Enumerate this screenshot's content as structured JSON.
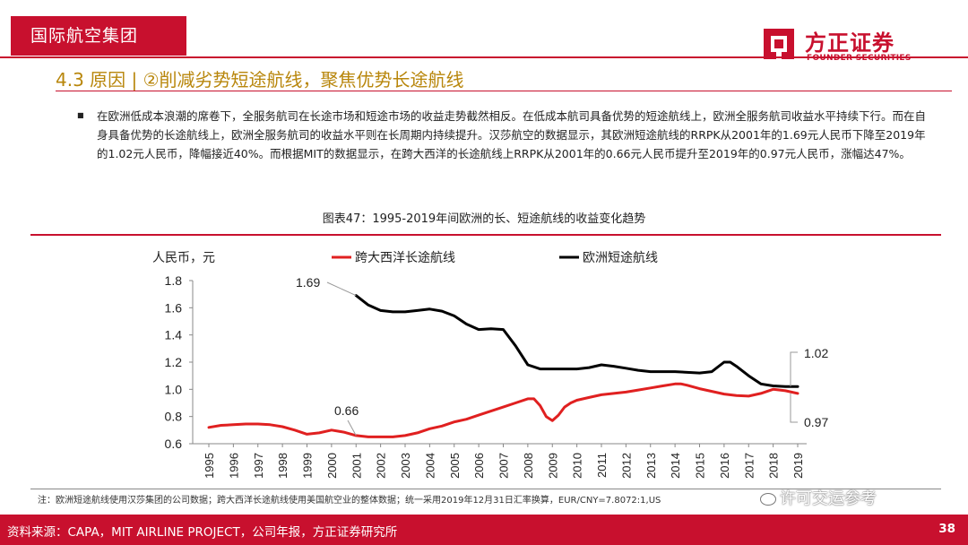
{
  "header": {
    "section": "国际航空集团",
    "logo_cn": "方正证券",
    "logo_en": "FOUNDER SECURITIES"
  },
  "slide": {
    "title": "4.3 原因 | ②削减劣势短途航线，聚焦优势长途航线",
    "bullet": "■",
    "body": "在欧洲低成本浪潮的席卷下，全服务航司在长途市场和短途市场的收益走势截然相反。在低成本航司具备优势的短途航线上，欧洲全服务航司收益水平持续下行。而在自身具备优势的长途航线上，欧洲全服务航司的收益水平则在长周期内持续提升。汉莎航空的数据显示，其欧洲短途航线的RRPK从2001年的1.69元人民币下降至2019年的1.02元人民币，降幅接近40%。而根据MIT的数据显示，在跨大西洋的长途航线上RRPK从2001年的0.66元人民币提升至2019年的0.97元人民币，涨幅达47%。",
    "chart_caption": "图表47：1995-2019年间欧洲的长、短途航线的收益变化趋势",
    "footnote": "注：欧洲短途航线使用汉莎集团的公司数据；跨大西洋长途航线使用美国航空业的整体数据；统一采用2019年12月31日汇率换算，EUR/CNY=7.8072:1,US",
    "watermark": "许可交运参考",
    "source": "资料来源：CAPA，MIT AIRLINE PROJECT，公司年报，方正证券研究所",
    "page": "38"
  },
  "colors": {
    "brand_red": "#c8102e",
    "title_gold": "#b8860b",
    "series_transatlantic": "#e02020",
    "series_europe_short": "#000000"
  },
  "chart_data": {
    "type": "line",
    "ylabel": "人民币，元",
    "ylim": [
      0.6,
      1.8
    ],
    "yticks": [
      "0.6",
      "0.8",
      "1.0",
      "1.2",
      "1.4",
      "1.6",
      "1.8"
    ],
    "x": [
      "1995",
      "1996",
      "1997",
      "1998",
      "1999",
      "2000",
      "2001",
      "2002",
      "2003",
      "2004",
      "2005",
      "2006",
      "2007",
      "2008",
      "2009",
      "2010",
      "2011",
      "2012",
      "2013",
      "2014",
      "2015",
      "2016",
      "2017",
      "2018",
      "2019"
    ],
    "grid": false,
    "legend": "top",
    "series": [
      {
        "name": "跨大西洋长途航线",
        "color": "#e02020",
        "values": [
          [
            "1995",
            0.72
          ],
          [
            "1995.5",
            0.735
          ],
          [
            "1996",
            0.74
          ],
          [
            "1996.5",
            0.745
          ],
          [
            "1997",
            0.745
          ],
          [
            "1997.5",
            0.74
          ],
          [
            "1998",
            0.725
          ],
          [
            "1998.5",
            0.7
          ],
          [
            "1999",
            0.67
          ],
          [
            "1999.5",
            0.68
          ],
          [
            "2000",
            0.7
          ],
          [
            "2000.5",
            0.685
          ],
          [
            "2001",
            0.66
          ],
          [
            "2001.5",
            0.65
          ],
          [
            "2002",
            0.65
          ],
          [
            "2002.5",
            0.65
          ],
          [
            "2003",
            0.66
          ],
          [
            "2003.5",
            0.68
          ],
          [
            "2004",
            0.71
          ],
          [
            "2004.5",
            0.73
          ],
          [
            "2005",
            0.76
          ],
          [
            "2005.5",
            0.78
          ],
          [
            "2006",
            0.81
          ],
          [
            "2006.5",
            0.84
          ],
          [
            "2007",
            0.87
          ],
          [
            "2007.5",
            0.9
          ],
          [
            "2008",
            0.93
          ],
          [
            "2008.25",
            0.93
          ],
          [
            "2008.5",
            0.88
          ],
          [
            "2008.75",
            0.8
          ],
          [
            "2009",
            0.77
          ],
          [
            "2009.25",
            0.81
          ],
          [
            "2009.5",
            0.87
          ],
          [
            "2009.75",
            0.9
          ],
          [
            "2010",
            0.92
          ],
          [
            "2010.5",
            0.94
          ],
          [
            "2011",
            0.96
          ],
          [
            "2011.5",
            0.97
          ],
          [
            "2012",
            0.98
          ],
          [
            "2012.5",
            0.995
          ],
          [
            "2013",
            1.01
          ],
          [
            "2013.5",
            1.025
          ],
          [
            "2014",
            1.04
          ],
          [
            "2014.25",
            1.04
          ],
          [
            "2014.5",
            1.03
          ],
          [
            "2015",
            1.005
          ],
          [
            "2015.5",
            0.985
          ],
          [
            "2016",
            0.965
          ],
          [
            "2016.5",
            0.955
          ],
          [
            "2017",
            0.95
          ],
          [
            "2017.5",
            0.97
          ],
          [
            "2018",
            1.0
          ],
          [
            "2018.5",
            0.99
          ],
          [
            "2019",
            0.97
          ]
        ]
      },
      {
        "name": "欧洲短途航线",
        "color": "#000000",
        "values": [
          [
            "2001",
            1.69
          ],
          [
            "2001.5",
            1.62
          ],
          [
            "2002",
            1.58
          ],
          [
            "2002.5",
            1.57
          ],
          [
            "2003",
            1.57
          ],
          [
            "2003.5",
            1.58
          ],
          [
            "2004",
            1.59
          ],
          [
            "2004.5",
            1.575
          ],
          [
            "2005",
            1.54
          ],
          [
            "2005.5",
            1.48
          ],
          [
            "2006",
            1.44
          ],
          [
            "2006.5",
            1.445
          ],
          [
            "2007",
            1.44
          ],
          [
            "2007.5",
            1.32
          ],
          [
            "2008",
            1.18
          ],
          [
            "2008.5",
            1.15
          ],
          [
            "2009",
            1.15
          ],
          [
            "2009.5",
            1.15
          ],
          [
            "2010",
            1.15
          ],
          [
            "2010.5",
            1.16
          ],
          [
            "2011",
            1.18
          ],
          [
            "2011.5",
            1.17
          ],
          [
            "2012",
            1.155
          ],
          [
            "2012.5",
            1.14
          ],
          [
            "2013",
            1.13
          ],
          [
            "2013.5",
            1.13
          ],
          [
            "2014",
            1.13
          ],
          [
            "2014.5",
            1.125
          ],
          [
            "2015",
            1.12
          ],
          [
            "2015.5",
            1.13
          ],
          [
            "2016",
            1.2
          ],
          [
            "2016.25",
            1.2
          ],
          [
            "2016.5",
            1.17
          ],
          [
            "2017",
            1.1
          ],
          [
            "2017.5",
            1.04
          ],
          [
            "2018",
            1.025
          ],
          [
            "2018.5",
            1.02
          ],
          [
            "2019",
            1.02
          ]
        ]
      }
    ],
    "annotations": [
      {
        "text": "1.69",
        "series": "欧洲短途航线",
        "x": "2001",
        "y": 1.69
      },
      {
        "text": "0.66",
        "series": "跨大西洋长途航线",
        "x": "2001",
        "y": 0.66
      },
      {
        "text": "1.02",
        "series": "欧洲短途航线",
        "x": "2019",
        "y": 1.02
      },
      {
        "text": "0.97",
        "series": "跨大西洋长途航线",
        "x": "2019",
        "y": 0.97
      }
    ]
  }
}
